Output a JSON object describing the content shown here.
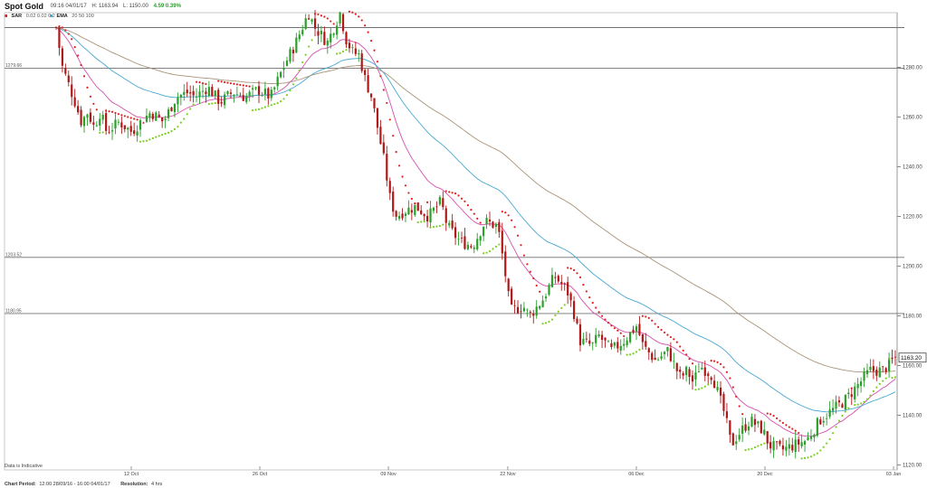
{
  "header": {
    "symbol": "Spot Gold",
    "datetime": "09:16 04/01/17",
    "high": "H: 1163.94",
    "low": "L: 1150.00",
    "change": "4.59 0.39%"
  },
  "indicators": [
    {
      "name": "SAR",
      "params": "0.02  0.02  0.2",
      "color": "#e02020"
    },
    {
      "name": "EMA",
      "params": "20  50  100",
      "color": "#4aa8d8"
    }
  ],
  "footer": {
    "period_label": "Chart Period:",
    "period_value": "12:00 28/09/16 - 16:00 04/01/17",
    "resolution_label": "Resolution:",
    "resolution_value": "4 hrs"
  },
  "indicative_note": "Data is Indicative",
  "colors": {
    "up": "#2aa02a",
    "down": "#b01818",
    "sar_above": "#e02020",
    "sar_below": "#7ad020",
    "ema20": "#d850b0",
    "ema50": "#48a8d0",
    "ema100": "#a89478",
    "hline": "#707070",
    "grid": "#dddddd"
  },
  "chart_data": {
    "type": "candlestick",
    "ylim": [
      1118,
      1302
    ],
    "y_ticks": [
      1120,
      1140,
      1160,
      1180,
      1200,
      1220,
      1240,
      1260,
      1280
    ],
    "x_range": [
      "28/09/16",
      "04/01/17"
    ],
    "x_ticks": [
      {
        "date": "12 Oct",
        "day": 14
      },
      {
        "date": "26 Oct",
        "day": 28
      },
      {
        "date": "09 Nov",
        "day": 42
      },
      {
        "date": "22 Nov",
        "day": 55
      },
      {
        "date": "06 Dec",
        "day": 69
      },
      {
        "date": "20 Dec",
        "day": 83
      },
      {
        "date": "03 Jan",
        "day": 97
      }
    ],
    "horizontal_lines": [
      {
        "value": 1296,
        "label": ""
      },
      {
        "value": 1279.66,
        "label": "1279.66"
      },
      {
        "value": 1203.52,
        "label": "1203.52"
      },
      {
        "value": 1180.95,
        "label": "1180.95"
      }
    ],
    "last_price": "1163.20",
    "close_path": [
      [
        0,
        1296
      ],
      [
        1,
        1280
      ],
      [
        3,
        1266
      ],
      [
        4,
        1258
      ],
      [
        5,
        1262
      ],
      [
        6,
        1256
      ],
      [
        7,
        1262
      ],
      [
        8,
        1254
      ],
      [
        10,
        1258
      ],
      [
        12,
        1254
      ],
      [
        13,
        1257
      ],
      [
        15,
        1262
      ],
      [
        17,
        1258
      ],
      [
        19,
        1268
      ],
      [
        21,
        1270
      ],
      [
        22,
        1268
      ],
      [
        24,
        1272
      ],
      [
        26,
        1266
      ],
      [
        28,
        1270
      ],
      [
        30,
        1268
      ],
      [
        32,
        1271
      ],
      [
        34,
        1268
      ],
      [
        36,
        1280
      ],
      [
        38,
        1290
      ],
      [
        40,
        1302
      ],
      [
        41,
        1296
      ],
      [
        43,
        1290
      ],
      [
        45,
        1302
      ],
      [
        46,
        1291
      ],
      [
        47,
        1286
      ],
      [
        48,
        1285
      ],
      [
        49,
        1275
      ],
      [
        50,
        1268
      ],
      [
        52,
        1242
      ],
      [
        53,
        1226
      ],
      [
        54,
        1220
      ],
      [
        55,
        1222
      ],
      [
        57,
        1224
      ],
      [
        59,
        1220
      ],
      [
        61,
        1226
      ],
      [
        62,
        1216
      ],
      [
        64,
        1210
      ],
      [
        66,
        1208
      ],
      [
        68,
        1218
      ],
      [
        70,
        1216
      ],
      [
        71,
        1200
      ],
      [
        72,
        1182
      ],
      [
        74,
        1184
      ],
      [
        75,
        1180
      ],
      [
        77,
        1186
      ],
      [
        79,
        1196
      ],
      [
        81,
        1190
      ],
      [
        82,
        1182
      ],
      [
        83,
        1170
      ],
      [
        85,
        1168
      ],
      [
        86,
        1172
      ],
      [
        88,
        1166
      ],
      [
        90,
        1170
      ],
      [
        92,
        1176
      ],
      [
        93,
        1168
      ],
      [
        95,
        1162
      ],
      [
        96,
        1164
      ],
      [
        97,
        1166
      ],
      [
        98,
        1160
      ],
      [
        99,
        1155
      ],
      [
        100,
        1158
      ],
      [
        101,
        1153
      ],
      [
        102,
        1160
      ],
      [
        104,
        1156
      ],
      [
        106,
        1140
      ],
      [
        107,
        1128
      ],
      [
        108,
        1132
      ],
      [
        110,
        1138
      ],
      [
        112,
        1134
      ],
      [
        113,
        1128
      ],
      [
        115,
        1126
      ],
      [
        117,
        1128
      ],
      [
        119,
        1130
      ],
      [
        121,
        1138
      ],
      [
        123,
        1142
      ],
      [
        125,
        1146
      ],
      [
        127,
        1152
      ],
      [
        129,
        1158
      ],
      [
        131,
        1158
      ],
      [
        133,
        1163.2
      ]
    ]
  }
}
